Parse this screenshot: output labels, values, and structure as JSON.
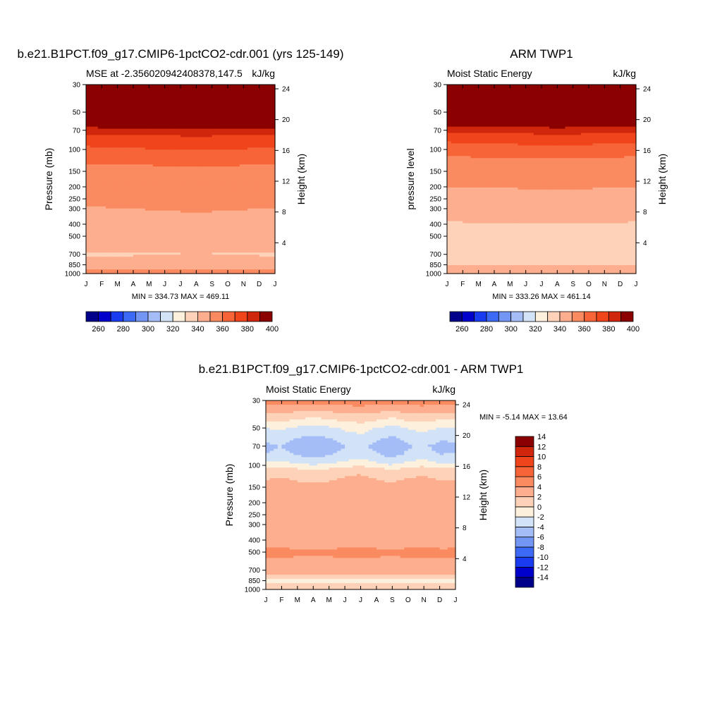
{
  "figure": {
    "month_labels": [
      "J",
      "F",
      "M",
      "A",
      "M",
      "J",
      "J",
      "A",
      "S",
      "O",
      "N",
      "D",
      "J"
    ]
  },
  "chart_data": [
    {
      "type": "heatmap",
      "panel": "model",
      "title": "b.e21.B1PCT.f09_g17.CMIP6-1pctCO2-cdr.001 (yrs 125-149)",
      "subtitle_left": "MSE at -2.356020942408378,147.5",
      "subtitle_right": "kJ/kg",
      "ylabel": "Pressure (mb)",
      "ylabel_right": "Height (km)",
      "minmax": "MIN = 334.73 MAX = 469.11",
      "pressure_ticks": [
        30,
        50,
        70,
        100,
        150,
        200,
        250,
        300,
        400,
        500,
        700,
        850,
        1000
      ],
      "height_ticks": [
        24,
        20,
        16,
        12,
        8,
        4
      ],
      "colorbar": {
        "orientation": "horizontal",
        "levels": [
          250,
          260,
          270,
          280,
          290,
          300,
          310,
          320,
          330,
          340,
          350,
          360,
          370,
          380,
          390,
          400
        ],
        "labels": [
          260,
          280,
          300,
          320,
          340,
          360,
          380,
          400
        ],
        "colors": [
          "#00008b",
          "#0000cd",
          "#1a3cf0",
          "#3c6af5",
          "#7396f5",
          "#a5bdf7",
          "#d2e3f7",
          "#fdf0dc",
          "#fdd2b9",
          "#fcae8e",
          "#fa8a60",
          "#f76437",
          "#f0441b",
          "#cf260c",
          "#8b0000"
        ]
      },
      "profile_p": [
        30,
        50,
        60,
        65,
        70,
        80,
        100,
        120,
        150,
        250,
        400,
        500,
        600,
        700,
        850,
        930,
        1000
      ],
      "profile_v": [
        465,
        430,
        405,
        392,
        385,
        375,
        368,
        362,
        356,
        351,
        347,
        346,
        343,
        339,
        345,
        350,
        355
      ],
      "month_mod": [
        0,
        0.5,
        1,
        1.5,
        2,
        2.5,
        3,
        3.5,
        3,
        2.5,
        2,
        1.5,
        1
      ],
      "min": 334.73,
      "max": 469.11
    },
    {
      "type": "heatmap",
      "panel": "obs",
      "title": "ARM TWP1",
      "subtitle_left": "Moist Static Energy",
      "subtitle_right": "kJ/kg",
      "ylabel": "pressure level",
      "ylabel_right": "Height (km)",
      "minmax": "MIN = 333.26 MAX = 461.14",
      "pressure_ticks": [
        30,
        50,
        70,
        100,
        150,
        200,
        250,
        300,
        400,
        500,
        700,
        850,
        1000
      ],
      "height_ticks": [
        24,
        20,
        16,
        12,
        8,
        4
      ],
      "colorbar": {
        "orientation": "horizontal",
        "levels": [
          250,
          260,
          270,
          280,
          290,
          300,
          310,
          320,
          330,
          340,
          350,
          360,
          370,
          380,
          390,
          400
        ],
        "labels": [
          260,
          280,
          300,
          320,
          340,
          360,
          380,
          400
        ],
        "colors": [
          "#00008b",
          "#0000cd",
          "#1a3cf0",
          "#3c6af5",
          "#7396f5",
          "#a5bdf7",
          "#d2e3f7",
          "#fdf0dc",
          "#fdd2b9",
          "#fcae8e",
          "#fa8a60",
          "#f76437",
          "#f0441b",
          "#cf260c",
          "#8b0000"
        ]
      },
      "profile_p": [
        30,
        50,
        60,
        65,
        70,
        80,
        100,
        120,
        150,
        250,
        350,
        400,
        500,
        700,
        850,
        930,
        1000
      ],
      "profile_v": [
        460,
        425,
        402,
        390,
        383,
        373,
        365,
        358,
        352,
        348,
        342,
        339,
        337,
        336,
        339,
        343,
        348
      ],
      "month_mod": [
        0,
        0.3,
        0.6,
        1.0,
        1.4,
        1.8,
        2.2,
        2.5,
        2.2,
        1.8,
        1.2,
        0.6,
        0
      ],
      "min": 333.26,
      "max": 461.14
    },
    {
      "type": "heatmap",
      "panel": "diff",
      "title": "b.e21.B1PCT.f09_g17.CMIP6-1pctCO2-cdr.001 - ARM TWP1",
      "subtitle_left": "Moist Static Energy",
      "subtitle_right": "kJ/kg",
      "ylabel": "Pressure (mb)",
      "ylabel_right": "Height (km)",
      "minmax": "MIN =  -5.14 MAX =  13.64",
      "pressure_ticks": [
        30,
        50,
        70,
        100,
        150,
        200,
        250,
        300,
        400,
        500,
        700,
        850,
        1000
      ],
      "height_ticks": [
        24,
        20,
        16,
        12,
        8,
        4
      ],
      "colorbar": {
        "orientation": "vertical",
        "levels": [
          -16,
          -14,
          -12,
          -10,
          -8,
          -6,
          -4,
          -2,
          0,
          2,
          4,
          6,
          8,
          10,
          12,
          14,
          16
        ],
        "labels": [
          14,
          12,
          10,
          8,
          6,
          4,
          2,
          0,
          -2,
          -4,
          -6,
          -8,
          -10,
          -12,
          -14
        ],
        "colors": [
          "#00008b",
          "#0000cd",
          "#1a3cf0",
          "#3c6af5",
          "#7396f5",
          "#a5bdf7",
          "#d2e3f7",
          "#fdf0dc",
          "#fdd2b9",
          "#fcae8e",
          "#fa8a60",
          "#f76437",
          "#f0441b",
          "#cf260c",
          "#8b0000"
        ]
      },
      "profile_p": [
        25,
        30,
        40,
        50,
        60,
        70,
        80,
        95,
        110,
        150,
        300,
        450,
        500,
        600,
        700,
        800,
        850,
        900,
        1000
      ],
      "profile_v": [
        9,
        5,
        1,
        -2,
        -3.5,
        -4.5,
        -4,
        -2,
        1,
        3,
        3.2,
        3.5,
        5,
        3,
        3,
        1.5,
        -1,
        1,
        2
      ],
      "month_mod": [
        0,
        0.5,
        -0.5,
        -1,
        -0.5,
        0.5,
        1,
        0,
        -1,
        0.3,
        0.8,
        -0.2,
        0
      ],
      "min": -5.14,
      "max": 13.64
    }
  ]
}
